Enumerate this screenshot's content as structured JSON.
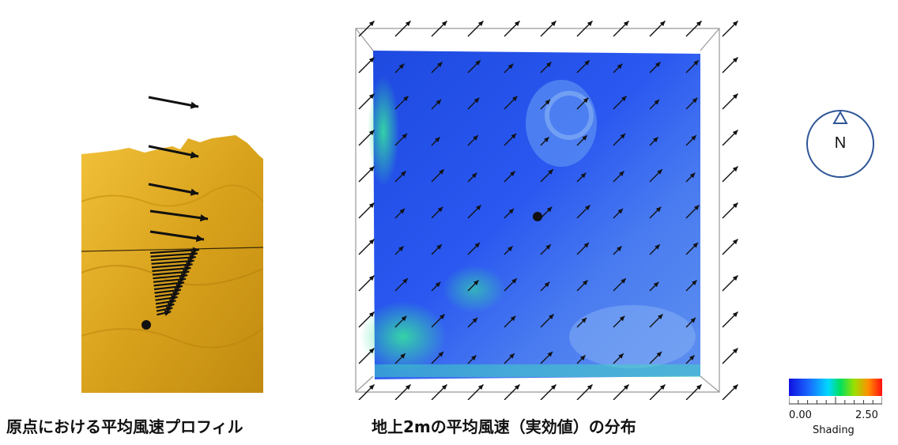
{
  "captions": {
    "left": "原点における平均風速プロフィル",
    "center": "地上2mの平均風速（実効値）の分布"
  },
  "compass": {
    "label": "N"
  },
  "colorbar": {
    "min_label": "0.00",
    "max_label": "2.50",
    "title": "Shading",
    "range": [
      0.0,
      2.5
    ],
    "colors": [
      "#1010e0",
      "#1a6cff",
      "#00d8ff",
      "#00e060",
      "#9ae000",
      "#ff9000",
      "#ff1010"
    ]
  },
  "colors": {
    "terrain": "#d9a21c",
    "field_base": "#2a52e8",
    "arrow": "#111111"
  }
}
